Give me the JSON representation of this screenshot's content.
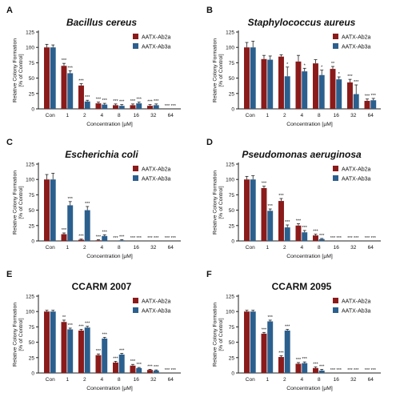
{
  "figure": {
    "x_categories": [
      "Con",
      "1",
      "2",
      "4",
      "8",
      "16",
      "32",
      "64"
    ],
    "colors": {
      "ab2a": "#8b1a1a",
      "ab3a": "#2b5f8e",
      "axis": "#222222",
      "text": "#111111"
    }
  },
  "chart_data": [
    {
      "type": "bar",
      "panel": "A",
      "title": "Bacillus cereus",
      "title_italic": true,
      "xlabel": "Concentration [µM]",
      "ylabel": "Relative Colony Formation [% of Control]",
      "ylim": [
        0,
        125
      ],
      "yticks": [
        0,
        25,
        50,
        75,
        100,
        125
      ],
      "legend": "top-right",
      "categories": [
        "Con",
        "1",
        "2",
        "4",
        "8",
        "16",
        "32",
        "64"
      ],
      "series": [
        {
          "name": "AATX-Ab2a",
          "values": [
            100,
            70,
            38,
            9,
            6,
            6,
            5,
            0
          ],
          "errors": [
            5,
            4,
            3,
            2,
            2,
            2,
            2,
            0
          ],
          "annotations": [
            "",
            "***",
            "***",
            "***",
            "***",
            "***",
            "***",
            "***"
          ]
        },
        {
          "name": "AATX-Ab3a",
          "values": [
            100,
            58,
            12,
            7,
            5,
            9,
            6,
            0
          ],
          "errors": [
            4,
            4,
            2,
            2,
            2,
            2,
            2,
            0
          ],
          "annotations": [
            "",
            "***",
            "***",
            "***",
            "***",
            "***",
            "***",
            "***"
          ]
        }
      ]
    },
    {
      "type": "bar",
      "panel": "B",
      "title": "Staphylococcus aureus",
      "title_italic": true,
      "xlabel": "Concentration [µM]",
      "ylabel": "Relative Colony Formation [% of Control]",
      "ylim": [
        0,
        125
      ],
      "yticks": [
        0,
        25,
        50,
        75,
        100,
        125
      ],
      "legend": "top-right",
      "categories": [
        "Con",
        "1",
        "2",
        "4",
        "8",
        "16",
        "32",
        "64"
      ],
      "series": [
        {
          "name": "AATX-Ab2a",
          "values": [
            100,
            81,
            85,
            77,
            74,
            65,
            43,
            13
          ],
          "errors": [
            8,
            6,
            3,
            10,
            6,
            4,
            5,
            3
          ],
          "annotations": [
            "",
            "",
            "",
            "",
            "",
            "**",
            "***",
            "***"
          ]
        },
        {
          "name": "AATX-Ab3a",
          "values": [
            100,
            80,
            53,
            61,
            55,
            48,
            24,
            14
          ],
          "errors": [
            10,
            6,
            15,
            5,
            8,
            4,
            15,
            3
          ],
          "annotations": [
            "",
            "",
            "*",
            "*",
            "*",
            "*",
            "***",
            "***"
          ]
        }
      ]
    },
    {
      "type": "bar",
      "panel": "C",
      "title": "Escherichia coli",
      "title_italic": true,
      "xlabel": "Concentration [µM]",
      "ylabel": "Relative Colony Formation [% of Control]",
      "ylim": [
        0,
        125
      ],
      "yticks": [
        0,
        25,
        50,
        75,
        100,
        125
      ],
      "legend": "top-right",
      "categories": [
        "Con",
        "1",
        "2",
        "4",
        "8",
        "16",
        "32",
        "64"
      ],
      "series": [
        {
          "name": "AATX-Ab2a",
          "values": [
            100,
            11,
            2,
            1,
            0,
            0,
            0,
            0
          ],
          "errors": [
            8,
            2,
            1,
            1,
            0,
            0,
            0,
            0
          ],
          "annotations": [
            "",
            "***",
            "***",
            "***",
            "***",
            "***",
            "***",
            "***"
          ]
        },
        {
          "name": "AATX-Ab3a",
          "values": [
            100,
            58,
            50,
            8,
            1,
            0,
            0,
            0
          ],
          "errors": [
            10,
            6,
            6,
            2,
            1,
            0,
            0,
            0
          ],
          "annotations": [
            "",
            "***",
            "***",
            "***",
            "***",
            "***",
            "***",
            "***"
          ]
        }
      ]
    },
    {
      "type": "bar",
      "panel": "D",
      "title": "Pseudomonas aeruginosa",
      "title_italic": true,
      "xlabel": "Concentration [µM]",
      "ylabel": "Relative Colony Formation [% of Control]",
      "ylim": [
        0,
        125
      ],
      "yticks": [
        0,
        25,
        50,
        75,
        100,
        125
      ],
      "legend": "top-right",
      "categories": [
        "Con",
        "1",
        "2",
        "4",
        "8",
        "16",
        "32",
        "64"
      ],
      "series": [
        {
          "name": "AATX-Ab2a",
          "values": [
            100,
            86,
            65,
            25,
            9,
            0,
            0,
            0
          ],
          "errors": [
            5,
            3,
            4,
            3,
            2,
            0,
            0,
            0
          ],
          "annotations": [
            "",
            "***",
            "***",
            "***",
            "***",
            "***",
            "***",
            "***"
          ]
        },
        {
          "name": "AATX-Ab3a",
          "values": [
            100,
            49,
            22,
            14,
            3,
            0,
            0,
            0
          ],
          "errors": [
            6,
            3,
            4,
            3,
            1,
            0,
            0,
            0
          ],
          "annotations": [
            "",
            "***",
            "***",
            "***",
            "***",
            "***",
            "***",
            "***"
          ]
        }
      ]
    },
    {
      "type": "bar",
      "panel": "E",
      "title": "CCARM 2007",
      "title_italic": false,
      "xlabel": "Concentration [µM]",
      "ylabel": "Relative Colony Formation [% of Control]",
      "ylim": [
        0,
        125
      ],
      "yticks": [
        0,
        25,
        50,
        75,
        100,
        125
      ],
      "legend": "top-right",
      "categories": [
        "Con",
        "1",
        "2",
        "4",
        "8",
        "16",
        "32",
        "64"
      ],
      "series": [
        {
          "name": "AATX-Ab2a",
          "values": [
            100,
            83,
            69,
            29,
            17,
            12,
            5,
            0
          ],
          "errors": [
            2,
            3,
            2,
            2,
            2,
            2,
            1,
            0
          ],
          "annotations": [
            "",
            "**",
            "***",
            "***",
            "***",
            "***",
            "***",
            "***"
          ]
        },
        {
          "name": "AATX-Ab3a",
          "values": [
            100,
            71,
            74,
            56,
            30,
            8,
            4,
            0
          ],
          "errors": [
            2,
            2,
            2,
            2,
            2,
            1,
            1,
            0
          ],
          "annotations": [
            "",
            "***",
            "***",
            "***",
            "***",
            "***",
            "***",
            "***"
          ]
        }
      ]
    },
    {
      "type": "bar",
      "panel": "F",
      "title": "CCARM 2095",
      "title_italic": false,
      "xlabel": "Concentration [µM]",
      "ylabel": "Relative Colony Formation [% of Control]",
      "ylim": [
        0,
        125
      ],
      "yticks": [
        0,
        25,
        50,
        75,
        100,
        125
      ],
      "legend": "top-right",
      "categories": [
        "Con",
        "1",
        "2",
        "4",
        "8",
        "16",
        "32",
        "64"
      ],
      "series": [
        {
          "name": "AATX-Ab2a",
          "values": [
            100,
            64,
            26,
            15,
            8,
            0,
            0,
            0
          ],
          "errors": [
            2,
            2,
            2,
            2,
            2,
            0,
            0,
            0
          ],
          "annotations": [
            "",
            "***",
            "***",
            "***",
            "***",
            "***",
            "***",
            "***"
          ]
        },
        {
          "name": "AATX-Ab3a",
          "values": [
            100,
            84,
            69,
            16,
            4,
            0,
            0,
            0
          ],
          "errors": [
            2,
            2,
            2,
            2,
            2,
            0,
            0,
            0
          ],
          "annotations": [
            "",
            "***",
            "***",
            "***",
            "***",
            "***",
            "***",
            "***"
          ]
        }
      ]
    }
  ]
}
